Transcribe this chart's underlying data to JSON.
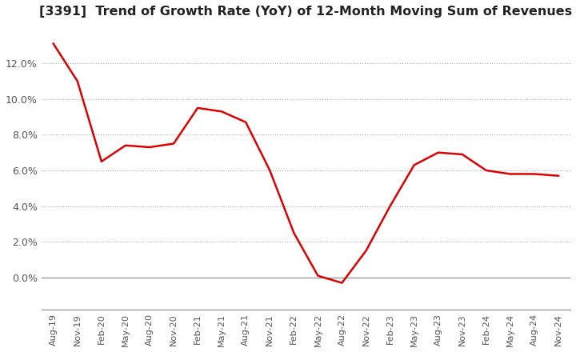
{
  "title": "[3391]  Trend of Growth Rate (YoY) of 12-Month Moving Sum of Revenues",
  "title_fontsize": 11.5,
  "line_color": "#dd0000",
  "background_color": "#ffffff",
  "plot_bg_color": "#ffffff",
  "grid_color": "#aaaaaa",
  "ylim": [
    -0.018,
    0.142
  ],
  "yticks": [
    0.0,
    0.02,
    0.04,
    0.06,
    0.08,
    0.1,
    0.12
  ],
  "ytick_labels": [
    "0.0%",
    "2.0%",
    "4.0%",
    "6.0%",
    "8.0%",
    "10.0%",
    "12.0%"
  ],
  "x_labels": [
    "Aug-19",
    "Nov-19",
    "Feb-20",
    "May-20",
    "Aug-20",
    "Nov-20",
    "Feb-21",
    "May-21",
    "Aug-21",
    "Nov-21",
    "Feb-22",
    "May-22",
    "Aug-22",
    "Nov-22",
    "Feb-23",
    "May-23",
    "Aug-23",
    "Nov-23",
    "Feb-24",
    "May-24",
    "Aug-24",
    "Nov-24"
  ],
  "values": [
    0.131,
    0.11,
    0.065,
    0.074,
    0.073,
    0.075,
    0.095,
    0.093,
    0.087,
    0.06,
    0.025,
    0.001,
    -0.003,
    0.015,
    0.04,
    0.063,
    0.07,
    0.069,
    0.06,
    0.058,
    0.058,
    0.057
  ]
}
